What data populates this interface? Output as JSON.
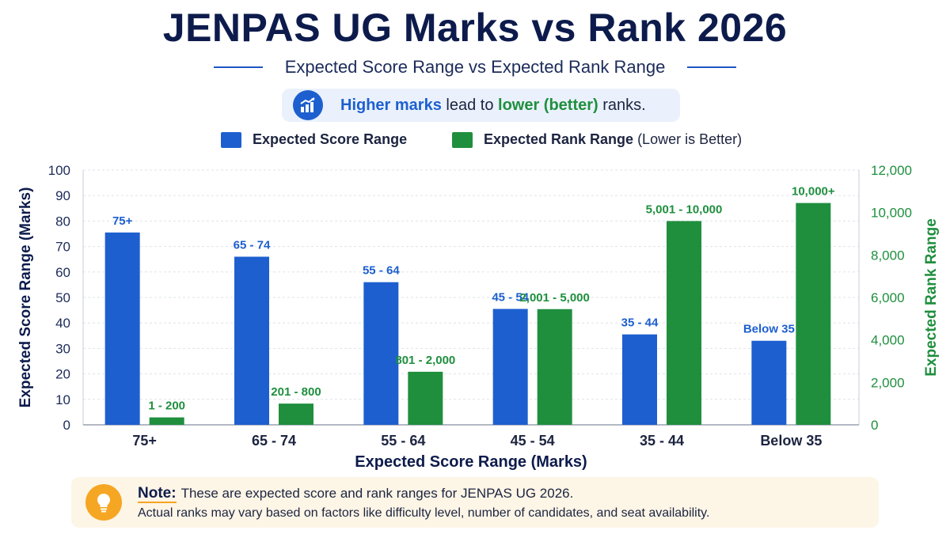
{
  "header": {
    "title": "JENPAS UG Marks vs Rank 2026",
    "subtitle": "Expected Score Range vs Expected Rank Range"
  },
  "callout": {
    "icon": "bar-chart-trend-icon",
    "part1": "Higher marks",
    "part2": " lead to ",
    "part3": "lower (better)",
    "part4": " ranks."
  },
  "legend": {
    "score_label": "Expected Score Range",
    "rank_label": "Expected Rank Range",
    "rank_suffix": " (Lower is Better)"
  },
  "colors": {
    "score": "#1d5fcf",
    "rank": "#1f8f3e",
    "title": "#0d1b4c"
  },
  "chart_data": {
    "type": "bar",
    "categories": [
      "75+",
      "65 - 74",
      "55 - 64",
      "45 - 54",
      "35 - 44",
      "Below 35"
    ],
    "xlabel": "Expected Score Range (Marks)",
    "ylabel_left": "Expected Score Range (Marks)",
    "ylabel_right": "Expected Rank Range",
    "ylim_left": [
      0,
      100
    ],
    "ylim_right": [
      0,
      12000
    ],
    "yticks_left": [
      "0",
      "10",
      "20",
      "30",
      "40",
      "50",
      "60",
      "70",
      "80",
      "90",
      "100"
    ],
    "yticks_right": [
      "0",
      "2,000",
      "4,000",
      "6,000",
      "8,000",
      "10,000",
      "12,000"
    ],
    "grid": true,
    "series": [
      {
        "name": "Expected Score Range",
        "axis": "left",
        "values": [
          75.5,
          66,
          56,
          45.5,
          35.5,
          33
        ],
        "labels": [
          "75+",
          "65 - 74",
          "55 - 64",
          "45 - 54",
          "35 - 44",
          "Below 35"
        ]
      },
      {
        "name": "Expected Rank Range",
        "axis": "right",
        "values": [
          350,
          1000,
          2500,
          5450,
          9600,
          10450
        ],
        "labels": [
          "1 - 200",
          "201 - 800",
          "801 - 2,000",
          "2,001 - 5,000",
          "5,001 - 10,000",
          "10,000+"
        ]
      }
    ]
  },
  "note": {
    "icon": "lightbulb-icon",
    "heading": "Note:",
    "line1": "These are expected score and rank ranges for JENPAS UG 2026.",
    "line2": "Actual ranks may vary based on factors like difficulty level, number of candidates, and seat availability."
  }
}
